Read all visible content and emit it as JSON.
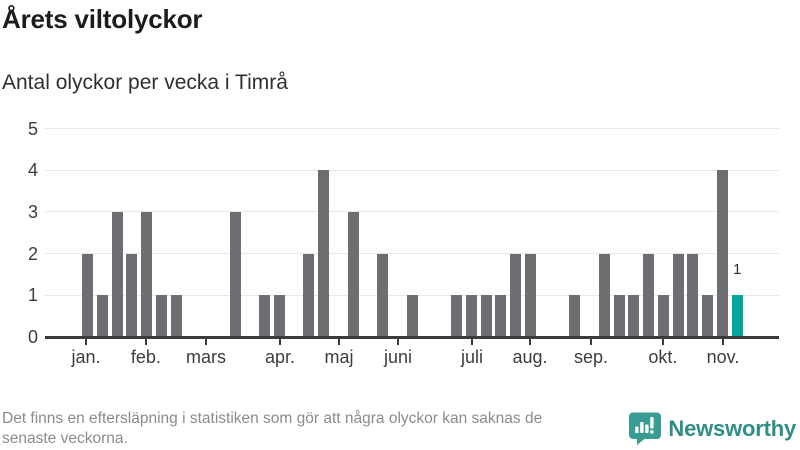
{
  "header": {
    "title": "Årets viltolyckor",
    "subtitle": "Antal olyckor per vecka i Timrå"
  },
  "footer": {
    "disclaimer_line1": "Det finns en eftersläpning i statistiken som gör att några olyckor kan saknas de",
    "disclaimer_line2": "senaste veckorna.",
    "brand_name": "Newsworthy",
    "brand_icon": "newsworthy-speech-bubble-chart-icon"
  },
  "colors": {
    "bar": "#6e6d71",
    "bar_highlight": "#00a69c",
    "axis": "#3b3b3b",
    "gridline": "#e8e8e8",
    "tick_label": "#3d3d3d",
    "value_label": "#2f2f2f",
    "footer_text": "#8b8b8b",
    "brand_teal": "#2f8f88",
    "brand_icon_fill": "#3a9b94"
  },
  "chart_data": {
    "type": "bar",
    "title": "Årets viltolyckor",
    "subtitle": "Antal olyckor per vecka i Timrå",
    "x_unit": "vecka",
    "x_range": [
      1,
      45
    ],
    "values": [
      2,
      1,
      3,
      2,
      3,
      1,
      1,
      0,
      0,
      0,
      3,
      0,
      1,
      1,
      0,
      2,
      4,
      0,
      3,
      0,
      2,
      0,
      1,
      0,
      0,
      1,
      1,
      1,
      1,
      2,
      2,
      0,
      0,
      1,
      0,
      2,
      1,
      1,
      2,
      1,
      2,
      2,
      1,
      4,
      1
    ],
    "highlight_last_bar": true,
    "annotation": {
      "text": "1",
      "week": 45
    },
    "ylim": [
      0,
      5
    ],
    "yticks": [
      0,
      1,
      2,
      3,
      4,
      5
    ],
    "grid": "horizontal",
    "legend": "none",
    "months": [
      {
        "label": "jan.",
        "week": 1.27
      },
      {
        "label": "feb.",
        "week": 5.33
      },
      {
        "label": "mars",
        "week": 9.4
      },
      {
        "label": "apr.",
        "week": 14.41
      },
      {
        "label": "maj",
        "week": 18.41
      },
      {
        "label": "juni",
        "week": 22.4
      },
      {
        "label": "juli",
        "week": 27.41
      },
      {
        "label": "aug.",
        "week": 31.34
      },
      {
        "label": "sep.",
        "week": 35.47
      },
      {
        "label": "okt.",
        "week": 40.34
      },
      {
        "label": "nov.",
        "week": 44.41
      }
    ]
  }
}
